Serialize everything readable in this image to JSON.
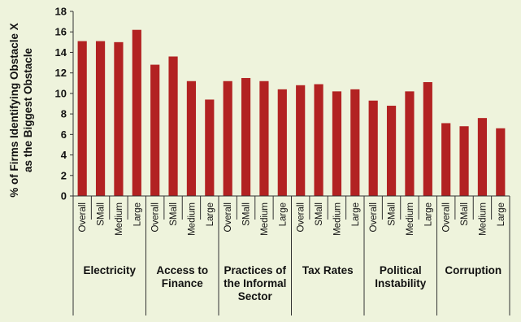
{
  "chart_data": {
    "type": "bar",
    "ylabel_lines": [
      "% of Firms Identifying Obstacle X",
      "as the Biggest Obstacle"
    ],
    "ylim": [
      0,
      18
    ],
    "yticks": [
      "0",
      "2",
      "4",
      "6",
      "8",
      "10",
      "12",
      "14",
      "16",
      "18"
    ],
    "grid": false,
    "bar_color": "#b22222",
    "groups": [
      {
        "label_lines": [
          "Electricity"
        ],
        "categories": [
          "Overall",
          "SMall",
          "Medium",
          "Large"
        ],
        "values": [
          15.1,
          15.1,
          15.0,
          16.2
        ]
      },
      {
        "label_lines": [
          "Access to",
          "Finance"
        ],
        "categories": [
          "Overall",
          "SMall",
          "Medium",
          "Large"
        ],
        "values": [
          12.8,
          13.6,
          11.2,
          9.4
        ]
      },
      {
        "label_lines": [
          "Practices of",
          "the Informal",
          "Sector"
        ],
        "categories": [
          "Overall",
          "SMall",
          "Medium",
          "Large"
        ],
        "values": [
          11.2,
          11.5,
          11.2,
          10.4
        ]
      },
      {
        "label_lines": [
          "Tax Rates"
        ],
        "categories": [
          "Overall",
          "SMall",
          "Medium",
          "Large"
        ],
        "values": [
          10.8,
          10.9,
          10.2,
          10.4
        ]
      },
      {
        "label_lines": [
          "Political",
          "Instability"
        ],
        "categories": [
          "Overall",
          "SMall",
          "Medium",
          "Large"
        ],
        "values": [
          9.3,
          8.8,
          10.2,
          11.1
        ]
      },
      {
        "label_lines": [
          "Corruption"
        ],
        "categories": [
          "Overall",
          "SMall",
          "Medium",
          "Large"
        ],
        "values": [
          7.1,
          6.8,
          7.6,
          6.6
        ]
      }
    ]
  }
}
